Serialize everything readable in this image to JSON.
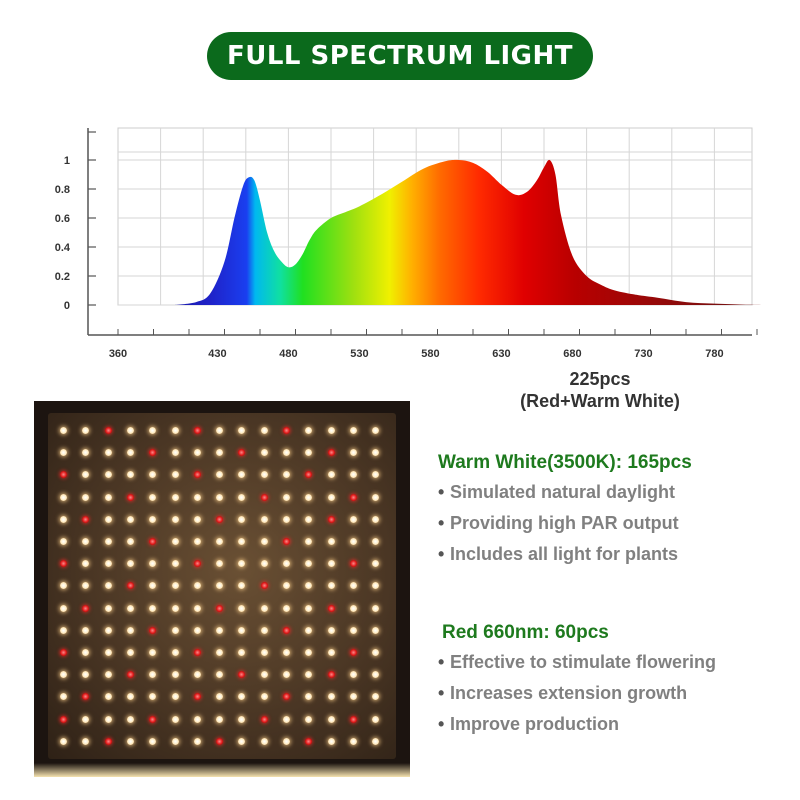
{
  "title": "FULL SPECTRUM LIGHT",
  "chart_data": {
    "type": "area",
    "title": "",
    "xlabel": "",
    "ylabel": "",
    "x_ticks": [
      "360",
      "430",
      "480",
      "530",
      "580",
      "630",
      "680",
      "730",
      "780"
    ],
    "y_ticks": [
      "0",
      "0.2",
      "0.4",
      "0.6",
      "0.8",
      "1"
    ],
    "xlim": [
      360,
      830
    ],
    "ylim": [
      0,
      1
    ],
    "grid": true,
    "series": [
      {
        "x": [
          400,
          415,
          425,
          435,
          442,
          448,
          452,
          456,
          460,
          465,
          470,
          475,
          480,
          485,
          490,
          495,
          500,
          510,
          520,
          530,
          545,
          560,
          575,
          590,
          600,
          610,
          620,
          630,
          640,
          648,
          655,
          660,
          664,
          668,
          672,
          680,
          690,
          700,
          710,
          725,
          740,
          760,
          780,
          800,
          815
        ],
        "values": [
          0,
          0.02,
          0.08,
          0.3,
          0.6,
          0.82,
          0.88,
          0.86,
          0.72,
          0.5,
          0.37,
          0.3,
          0.26,
          0.28,
          0.35,
          0.45,
          0.52,
          0.6,
          0.64,
          0.68,
          0.76,
          0.85,
          0.94,
          0.99,
          1.0,
          0.98,
          0.92,
          0.83,
          0.76,
          0.78,
          0.86,
          0.95,
          1.0,
          0.9,
          0.62,
          0.34,
          0.2,
          0.14,
          0.1,
          0.07,
          0.05,
          0.02,
          0.01,
          0.003,
          0
        ]
      }
    ]
  },
  "pcs": {
    "line1": "225pcs",
    "line2": "(Red+Warm White)"
  },
  "warm": {
    "title": "Warm White(3500K): 165pcs",
    "items": [
      "Simulated natural daylight",
      "Providing high PAR output",
      "Includes all light for plants"
    ]
  },
  "red": {
    "title": "Red 660nm: 60pcs",
    "items": [
      "Effective to stimulate flowering",
      "Increases extension growth",
      "Improve production"
    ]
  },
  "colors": {
    "title_bg": "#0b6a1c",
    "feature_title": "#1e7a1e",
    "bullet_text": "#808080"
  }
}
